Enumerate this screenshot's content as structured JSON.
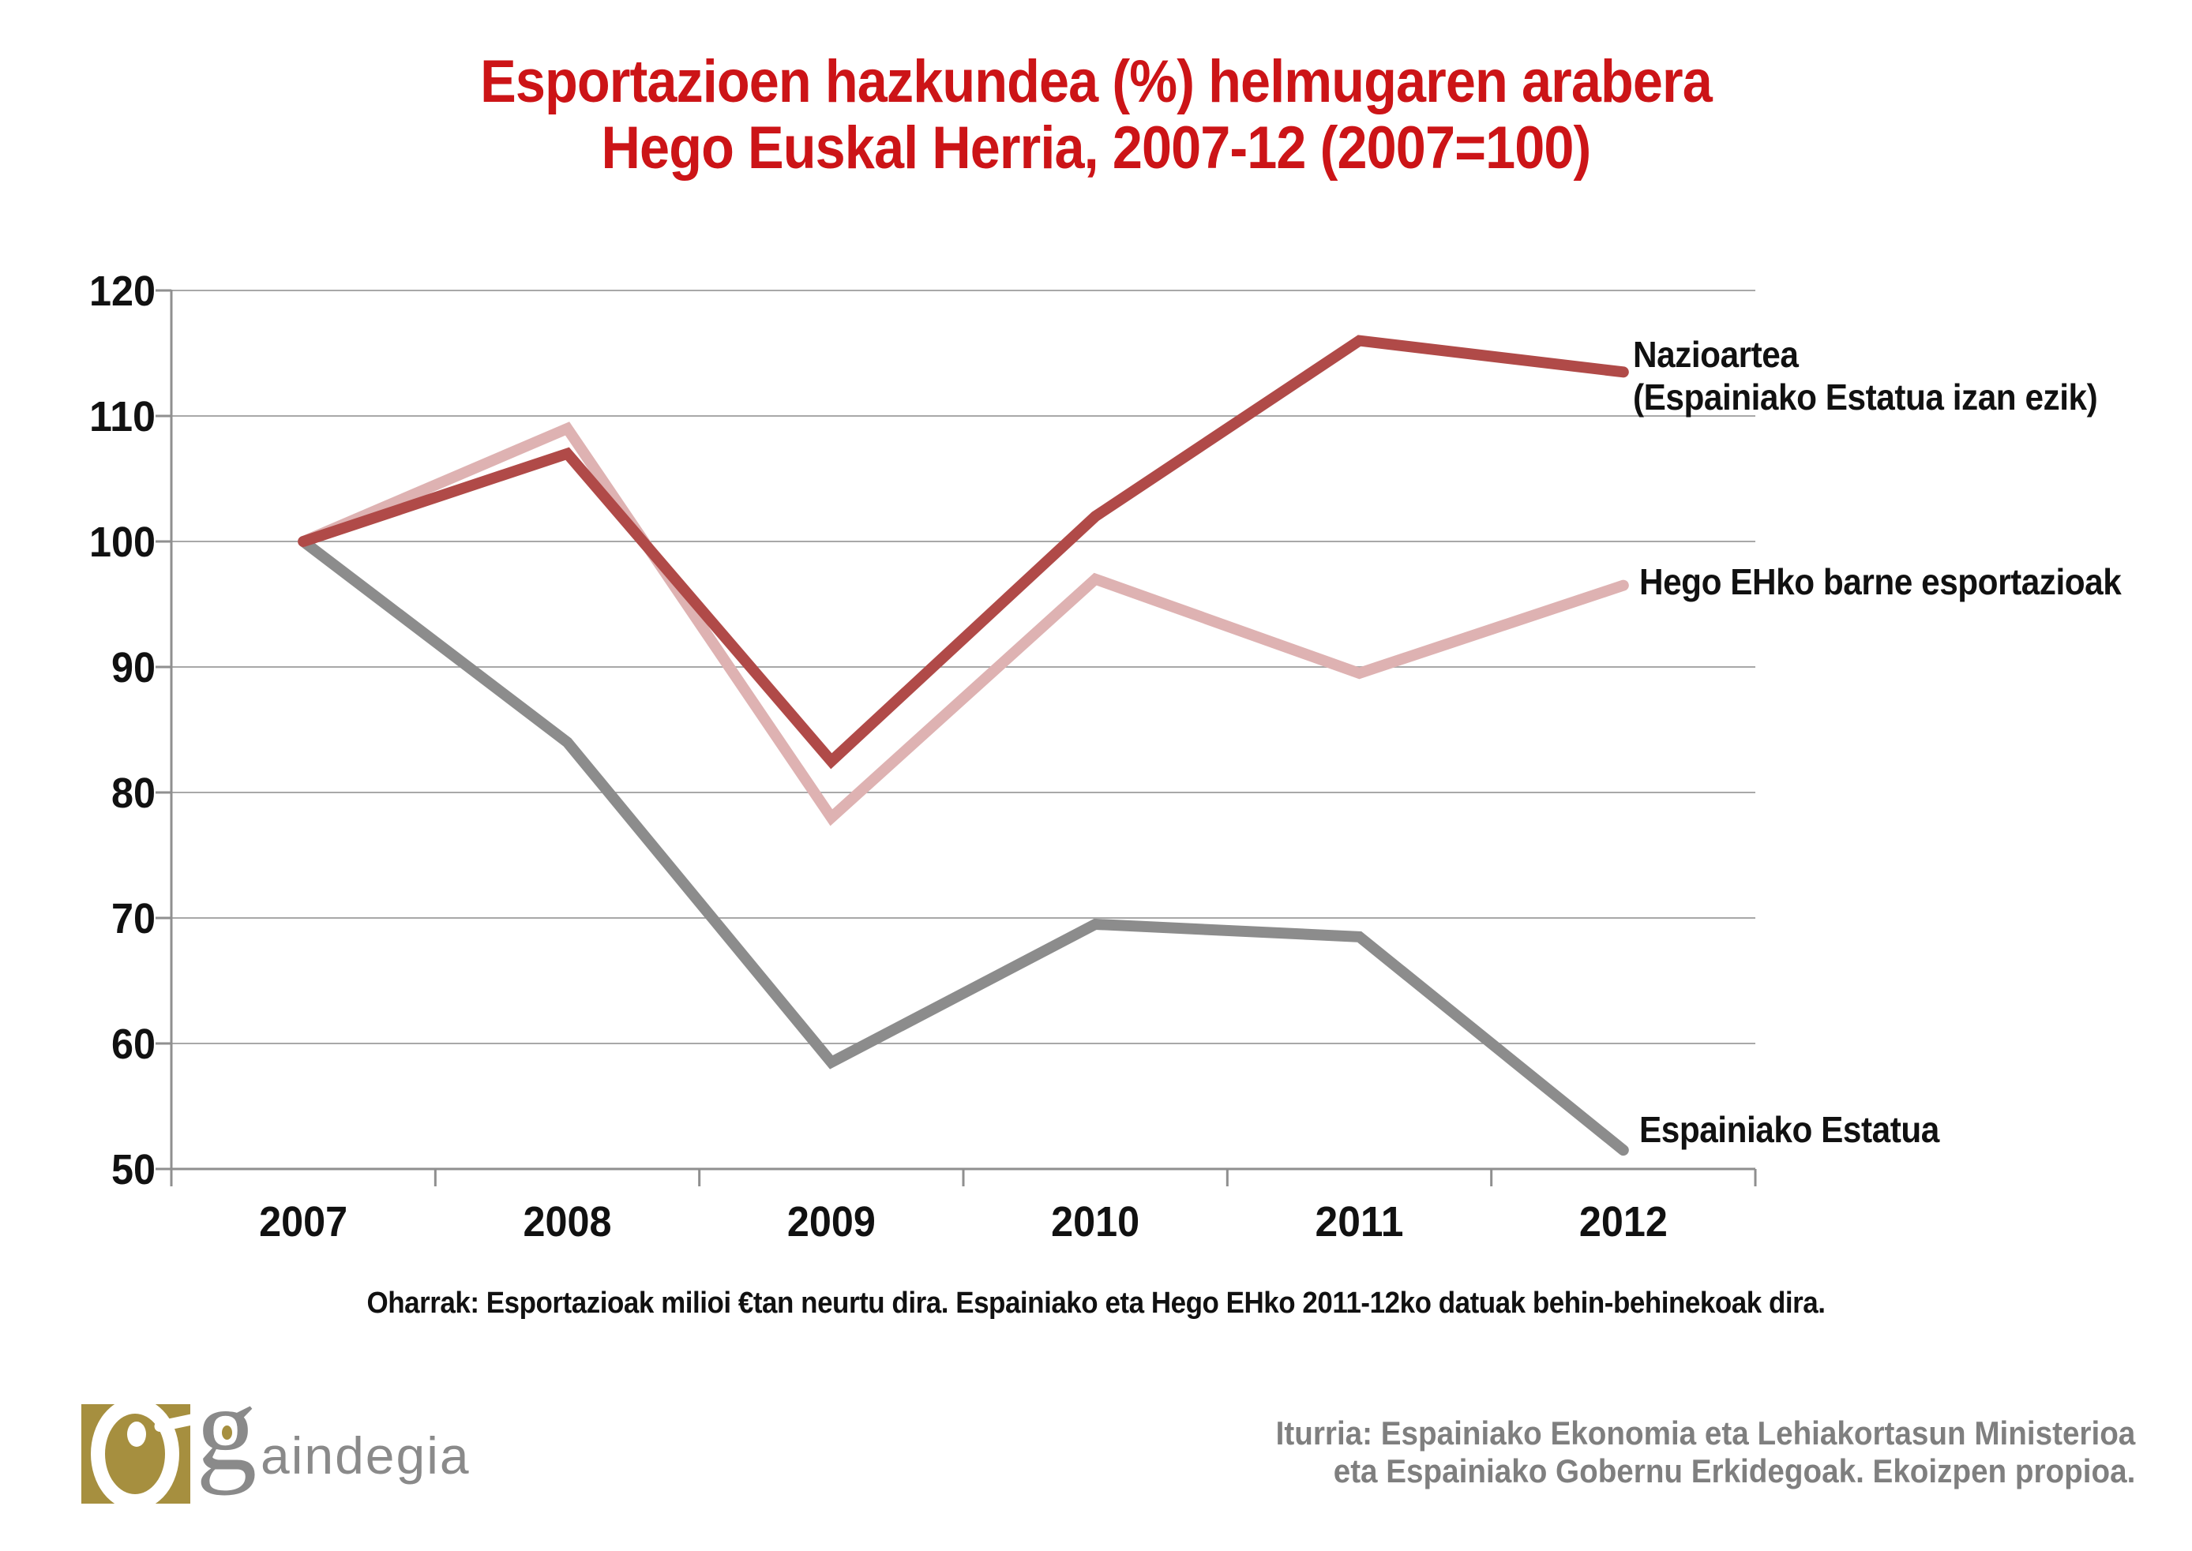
{
  "title": {
    "line1": "Esportazioen hazkundea (%) helmugaren arabera",
    "line2": "Hego Euskal Herria, 2007-12 (2007=100)"
  },
  "chart_data": {
    "type": "line",
    "x": [
      "2007",
      "2008",
      "2009",
      "2010",
      "2011",
      "2012"
    ],
    "series": [
      {
        "name": "Nazioartea (Espainiako Estatua izan ezik)",
        "label_line1": "Nazioartea",
        "label_line2": "(Espainiako Estatua izan ezik)",
        "color": "#b04a48",
        "values": [
          100,
          107,
          82.5,
          102,
          116,
          113.5
        ]
      },
      {
        "name": "Hego EHko barne esportazioak",
        "label_line1": "Hego EHko barne esportazioak",
        "color": "#deb2b2",
        "values": [
          100,
          109,
          78,
          97,
          89.5,
          96.5
        ]
      },
      {
        "name": "Espainiako Estatua",
        "label_line1": "Espainiako Estatua",
        "color": "#8c8c8c",
        "values": [
          100,
          84,
          58.5,
          69.5,
          68.5,
          51.5
        ]
      }
    ],
    "xlabel": "",
    "ylabel": "",
    "ylim": [
      50,
      120
    ],
    "yticks": [
      50,
      60,
      70,
      80,
      90,
      100,
      110,
      120
    ],
    "grid": true,
    "legend_position": "end-of-line annotations at right"
  },
  "note": {
    "text": "Oharrak: Esportazioak milioi €tan neurtu dira. Espainiako eta Hego EHko 2011-12ko datuak behin-behinekoak dira."
  },
  "footer": {
    "logo_g": "g",
    "logo_rest": "aindegia",
    "source_line1": "Iturria: Espainiako Ekonomia eta Lehiakortasun Ministerioa",
    "source_line2": "eta Espainiako Gobernu Erkidegoak. Ekoizpen propioa."
  },
  "colors": {
    "title_red": "#cc1417",
    "line_nazioartea": "#b04a48",
    "line_hego_eh": "#deb2b2",
    "line_espainia": "#8c8c8c",
    "grid_gray": "#a8a8a8",
    "axis_gray": "#8f8f8f",
    "text_black": "#111111",
    "source_gray": "#7f7f7f",
    "logo_gold": "#a68f3f",
    "logo_gray": "#8a8a8a"
  }
}
